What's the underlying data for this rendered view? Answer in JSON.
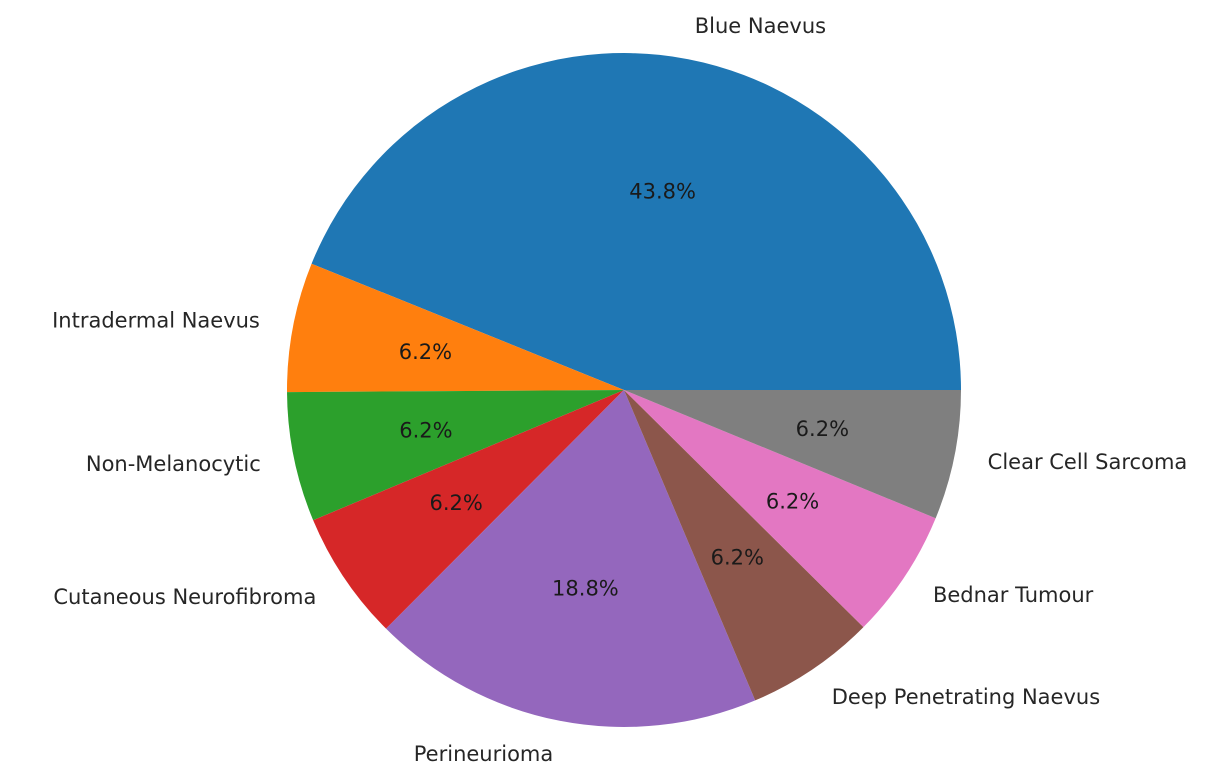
{
  "chart_data": {
    "type": "pie",
    "start_angle_deg": 0,
    "direction": "counterclockwise",
    "slices": [
      {
        "label": "Blue Naevus",
        "value": 43.8,
        "pct_label": "43.8%",
        "color": "#1f77b4"
      },
      {
        "label": "Intradermal Naevus",
        "value": 6.2,
        "pct_label": "6.2%",
        "color": "#ff7f0e"
      },
      {
        "label": "Non-Melanocytic",
        "value": 6.2,
        "pct_label": "6.2%",
        "color": "#2ca02c"
      },
      {
        "label": "Cutaneous Neurofibroma",
        "value": 6.2,
        "pct_label": "6.2%",
        "color": "#d62728"
      },
      {
        "label": "Perineurioma",
        "value": 18.8,
        "pct_label": "18.8%",
        "color": "#9467bd"
      },
      {
        "label": "Deep Penetrating Naevus",
        "value": 6.2,
        "pct_label": "6.2%",
        "color": "#8c564b"
      },
      {
        "label": "Bednar Tumour",
        "value": 6.2,
        "pct_label": "6.2%",
        "color": "#e377c2"
      },
      {
        "label": "Clear Cell Sarcoma",
        "value": 6.2,
        "pct_label": "6.2%",
        "color": "#7f7f7f"
      }
    ]
  }
}
